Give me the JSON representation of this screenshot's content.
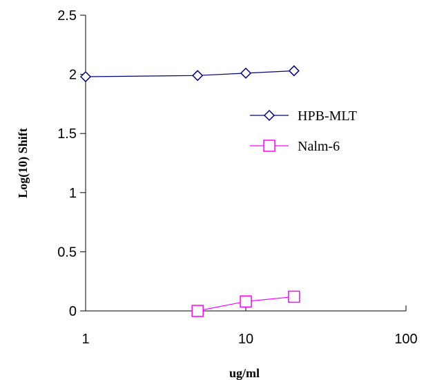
{
  "chart_data": {
    "type": "scatter",
    "xlabel": "ug/ml",
    "ylabel": "Log(10) Shift",
    "x_scale": "log",
    "xlim": [
      1,
      100
    ],
    "ylim": [
      0,
      2.5
    ],
    "x_ticks": [
      "1",
      "10",
      "100"
    ],
    "y_ticks": [
      "0",
      "0.5",
      "1",
      "1.5",
      "2",
      "2.5"
    ],
    "grid": false,
    "legend_position": "right",
    "series": [
      {
        "name": "HPB-MLT",
        "color": "#000080",
        "marker": "diamond",
        "x": [
          1,
          5,
          10,
          20
        ],
        "y": [
          1.98,
          1.99,
          2.01,
          2.03
        ]
      },
      {
        "name": "Nalm-6",
        "color": "#ff00ff",
        "marker": "square",
        "x": [
          5,
          10,
          20
        ],
        "y": [
          0.0,
          0.08,
          0.12
        ]
      }
    ]
  }
}
